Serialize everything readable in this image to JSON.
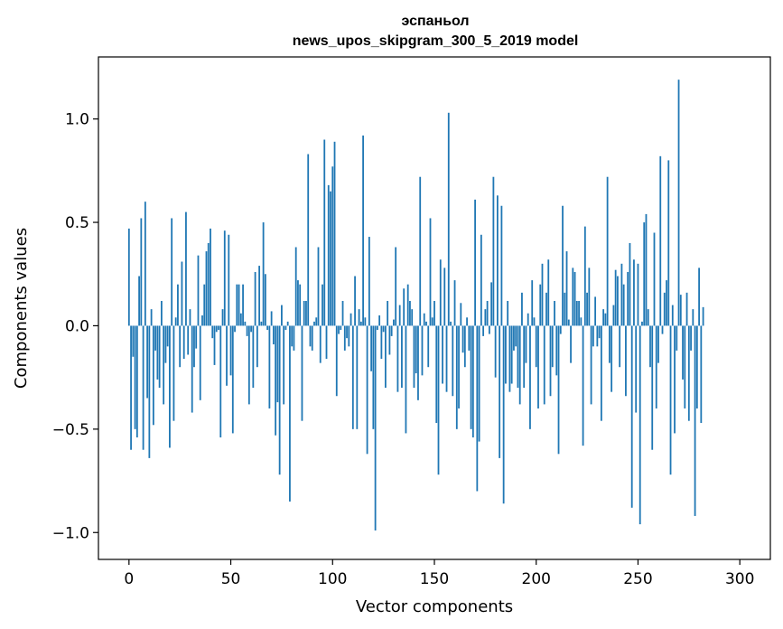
{
  "chart_data": {
    "type": "bar",
    "title_lines": [
      "эспаньол",
      "news_upos_skipgram_300_5_2019 model"
    ],
    "xlabel": "Vector components",
    "ylabel": "Components values",
    "xlim": [
      -15,
      315
    ],
    "ylim": [
      -1.13,
      1.3
    ],
    "xticks": [
      0,
      50,
      100,
      150,
      200,
      250,
      300
    ],
    "xtick_labels": [
      "0",
      "50",
      "100",
      "150",
      "200",
      "250",
      "300"
    ],
    "yticks": [
      -1.0,
      -0.5,
      0.0,
      0.5,
      1.0
    ],
    "ytick_labels": [
      "−1.0",
      "−0.5",
      "0.0",
      "0.5",
      "1.0"
    ],
    "bar_color": "#1f77b4",
    "bar_width": 0.8,
    "values": [
      0.47,
      -0.6,
      -0.15,
      -0.5,
      -0.54,
      0.24,
      0.52,
      -0.6,
      0.6,
      -0.35,
      -0.64,
      0.08,
      -0.48,
      -0.12,
      -0.26,
      -0.3,
      0.12,
      -0.38,
      -0.18,
      -0.1,
      -0.59,
      0.52,
      -0.46,
      0.04,
      0.2,
      -0.2,
      0.31,
      -0.16,
      0.55,
      -0.14,
      0.08,
      -0.42,
      -0.2,
      -0.11,
      0.34,
      -0.36,
      0.05,
      0.2,
      0.36,
      0.4,
      0.47,
      -0.06,
      -0.19,
      -0.03,
      -0.02,
      -0.54,
      0.08,
      0.46,
      -0.29,
      0.44,
      -0.24,
      -0.52,
      -0.03,
      0.2,
      0.2,
      0.06,
      0.2,
      0.02,
      -0.05,
      -0.38,
      -0.03,
      -0.3,
      0.26,
      -0.2,
      0.29,
      0.02,
      0.5,
      0.25,
      -0.02,
      -0.4,
      0.07,
      -0.09,
      -0.53,
      -0.37,
      -0.72,
      0.1,
      -0.38,
      -0.02,
      0.02,
      -0.85,
      -0.1,
      -0.12,
      0.38,
      0.22,
      0.2,
      -0.46,
      0.12,
      0.12,
      0.83,
      -0.1,
      -0.12,
      0.02,
      0.04,
      0.38,
      -0.18,
      0.2,
      0.9,
      -0.16,
      0.68,
      0.65,
      0.77,
      0.89,
      -0.34,
      -0.04,
      -0.02,
      0.12,
      -0.12,
      -0.06,
      -0.1,
      0.06,
      -0.5,
      0.24,
      -0.5,
      0.08,
      0.02,
      0.92,
      0.04,
      -0.62,
      0.43,
      -0.22,
      -0.5,
      -0.99,
      -0.02,
      0.05,
      -0.16,
      -0.03,
      -0.3,
      0.12,
      -0.14,
      -0.05,
      0.03,
      0.38,
      -0.32,
      0.1,
      -0.3,
      0.18,
      -0.52,
      0.2,
      0.12,
      0.08,
      -0.3,
      -0.23,
      -0.36,
      0.72,
      -0.24,
      0.06,
      0.02,
      -0.2,
      0.52,
      0.04,
      0.12,
      -0.47,
      -0.72,
      0.32,
      -0.28,
      0.28,
      -0.32,
      1.03,
      0.02,
      -0.34,
      0.22,
      -0.5,
      -0.4,
      0.11,
      -0.13,
      -0.2,
      0.04,
      -0.12,
      -0.5,
      -0.54,
      0.61,
      -0.8,
      -0.56,
      0.44,
      -0.05,
      0.08,
      0.12,
      -0.04,
      0.21,
      0.72,
      -0.25,
      0.63,
      -0.64,
      0.58,
      -0.86,
      -0.28,
      0.12,
      -0.32,
      -0.28,
      -0.12,
      -0.1,
      -0.3,
      -0.38,
      0.16,
      -0.3,
      -0.18,
      0.06,
      -0.5,
      0.22,
      0.04,
      -0.2,
      -0.4,
      0.2,
      0.3,
      -0.38,
      0.16,
      0.32,
      -0.34,
      -0.2,
      0.12,
      -0.24,
      -0.62,
      -0.04,
      0.58,
      0.16,
      0.36,
      0.03,
      -0.18,
      0.28,
      0.26,
      0.12,
      0.12,
      0.04,
      -0.58,
      0.48,
      0.16,
      0.28,
      -0.38,
      -0.1,
      0.14,
      -0.1,
      -0.06,
      -0.46,
      0.08,
      0.06,
      0.72,
      -0.18,
      -0.32,
      0.1,
      0.27,
      0.24,
      -0.2,
      0.3,
      0.2,
      -0.34,
      0.26,
      0.4,
      -0.88,
      0.32,
      -0.42,
      0.3,
      -0.96,
      0.02,
      0.5,
      0.54,
      0.08,
      -0.2,
      -0.6,
      0.45,
      -0.4,
      -0.18,
      0.82,
      -0.04,
      0.16,
      0.22,
      0.8,
      -0.72,
      0.1,
      -0.52,
      -0.12,
      1.19,
      0.15,
      -0.26,
      -0.4,
      0.16,
      -0.46,
      -0.12,
      0.08,
      -0.92,
      -0.4,
      0.28,
      -0.47,
      0.09
    ]
  }
}
